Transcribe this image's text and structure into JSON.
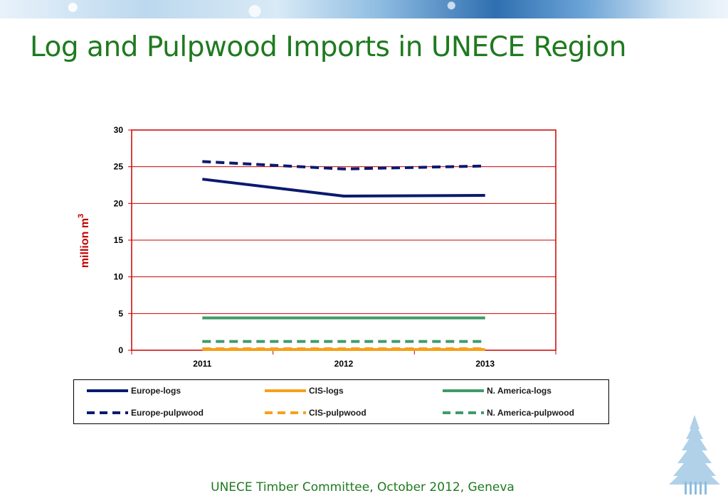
{
  "slide": {
    "title": "Log and Pulpwood Imports in UNECE Region",
    "footer": "UNECE Timber Committee, October 2012, Geneva"
  },
  "colors": {
    "title_text": "#1f7a1f",
    "gridline": "#cc0000",
    "axis_label": "#c00000",
    "europe": "#0a1a6e",
    "cis": "#f4a11c",
    "north_america": "#3e9b6a"
  },
  "chart_data": {
    "type": "line",
    "x": [
      "2011",
      "2012",
      "2013"
    ],
    "ylabel": "million m",
    "ylabel_superscript": "3",
    "ylim": [
      0,
      30
    ],
    "yticks": [
      0,
      5,
      10,
      15,
      20,
      25,
      30
    ],
    "grid": true,
    "legend_position": "bottom",
    "series": [
      {
        "name": "Europe-logs",
        "values": [
          23.3,
          21.0,
          21.1
        ],
        "color": "#0a1a6e",
        "dash": "solid"
      },
      {
        "name": "CIS-logs",
        "values": [
          0.1,
          0.1,
          0.1
        ],
        "color": "#f4a11c",
        "dash": "solid"
      },
      {
        "name": "N. America-logs",
        "values": [
          4.4,
          4.4,
          4.4
        ],
        "color": "#3e9b6a",
        "dash": "solid"
      },
      {
        "name": "Europe-pulpwood",
        "values": [
          25.7,
          24.7,
          25.1
        ],
        "color": "#0a1a6e",
        "dash": "dashed"
      },
      {
        "name": "CIS-pulpwood",
        "values": [
          0.2,
          0.2,
          0.2
        ],
        "color": "#f4a11c",
        "dash": "dashed"
      },
      {
        "name": "N. America-pulpwood",
        "values": [
          1.2,
          1.2,
          1.2
        ],
        "color": "#3e9b6a",
        "dash": "dashed"
      }
    ]
  }
}
